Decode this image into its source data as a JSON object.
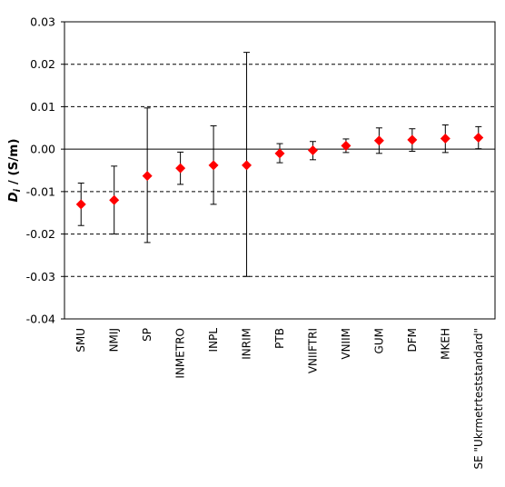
{
  "chart_data": {
    "type": "scatter",
    "ylabel_main": "D",
    "ylabel_sub": "i",
    "ylabel_rest": " / (S/m)",
    "xlabel": "",
    "ylim": [
      -0.04,
      0.03
    ],
    "yticks": [
      0.03,
      0.02,
      0.01,
      0.0,
      -0.01,
      -0.02,
      -0.03,
      -0.04
    ],
    "ytick_labels": [
      "0.03",
      "0.02",
      "0.01",
      "0.00",
      "-0.01",
      "-0.02",
      "-0.03",
      "-0.04"
    ],
    "gridlines": {
      "style": "dashed",
      "values": [
        0.02,
        0.01,
        -0.01,
        -0.02,
        -0.03
      ]
    },
    "zero_line": true,
    "marker": {
      "shape": "diamond",
      "color": "#ff0000"
    },
    "errorbar_color": "#000000",
    "categories": [
      "SMU",
      "NMIJ",
      "SP",
      "INMETRO",
      "INPL",
      "INRIM",
      "PTB",
      "VNIIFTRI",
      "VNIIM",
      "GUM",
      "DFM",
      "MKEH",
      "SE \"Ukrmetrteststandard\""
    ],
    "points": [
      {
        "label": "SMU",
        "value": -0.013,
        "err_low": -0.018,
        "err_high": -0.008
      },
      {
        "label": "NMIJ",
        "value": -0.012,
        "err_low": -0.02,
        "err_high": -0.004
      },
      {
        "label": "SP",
        "value": -0.0063,
        "err_low": -0.022,
        "err_high": 0.0097
      },
      {
        "label": "INMETRO",
        "value": -0.0045,
        "err_low": -0.0083,
        "err_high": -0.0007
      },
      {
        "label": "INPL",
        "value": -0.0038,
        "err_low": -0.013,
        "err_high": 0.0055
      },
      {
        "label": "INRIM",
        "value": -0.0038,
        "err_low": -0.03,
        "err_high": 0.0228
      },
      {
        "label": "PTB",
        "value": -0.001,
        "err_low": -0.0032,
        "err_high": 0.0013
      },
      {
        "label": "VNIIFTRI",
        "value": -0.0003,
        "err_low": -0.0025,
        "err_high": 0.0018
      },
      {
        "label": "VNIIM",
        "value": 0.0008,
        "err_low": -0.0008,
        "err_high": 0.0024
      },
      {
        "label": "GUM",
        "value": 0.002,
        "err_low": -0.001,
        "err_high": 0.005
      },
      {
        "label": "DFM",
        "value": 0.0022,
        "err_low": -0.0005,
        "err_high": 0.0048
      },
      {
        "label": "MKEH",
        "value": 0.0025,
        "err_low": -0.0008,
        "err_high": 0.0057
      },
      {
        "label": "SE \"Ukrmetrteststandard\"",
        "value": 0.0027,
        "err_low": 0.0001,
        "err_high": 0.0053
      }
    ]
  }
}
